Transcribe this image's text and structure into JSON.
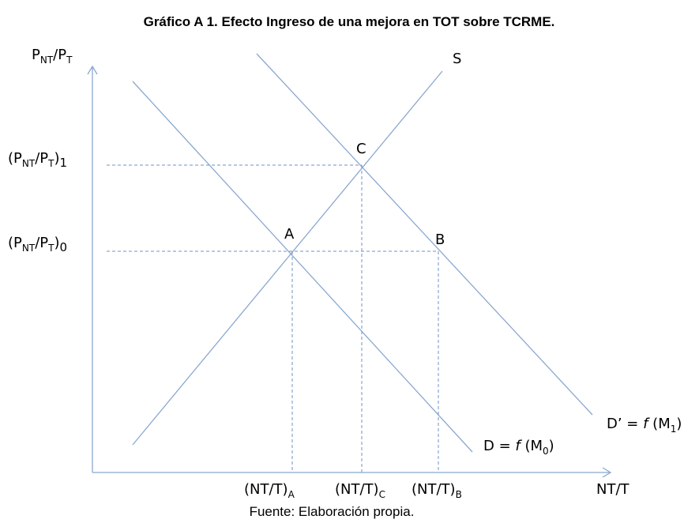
{
  "title": "Gráfico A 1. Efecto Ingreso de una mejora en TOT sobre TCRME.",
  "y_axis_label": [
    "P",
    "NT",
    "/P",
    "T"
  ],
  "x_axis_label": "NT/T",
  "price_levels": [
    [
      "(P",
      "NT",
      "/P",
      "T",
      ")",
      "1"
    ],
    [
      "(P",
      "NT",
      "/P",
      "T",
      ")",
      "0"
    ]
  ],
  "points": [
    "A",
    "C",
    "B"
  ],
  "curves": {
    "supply": "S",
    "demand": [
      "D = ",
      "f",
      " (M",
      "0",
      ")"
    ],
    "demand_shifted": [
      "D’ = ",
      "f",
      " (M",
      "1",
      ")"
    ]
  },
  "quantity_levels": [
    [
      "(NT/T)",
      "A"
    ],
    [
      "(NT/T)",
      "C"
    ],
    [
      "(NT/T)",
      "B"
    ]
  ],
  "source": "Fuente: Elaboración propia."
}
